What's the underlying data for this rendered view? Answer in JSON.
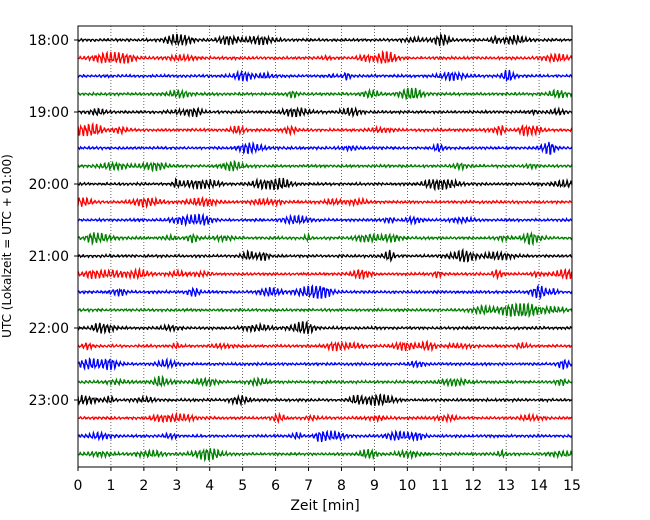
{
  "chart_data": {
    "type": "line",
    "title": "",
    "xlabel": "Zeit  [min]",
    "ylabel": "UTC (Lokalzeit = UTC + 01:00)",
    "xlim": [
      0,
      15
    ],
    "x_ticks": [
      "0",
      "1",
      "2",
      "3",
      "4",
      "5",
      "6",
      "7",
      "8",
      "9",
      "10",
      "11",
      "12",
      "13",
      "14",
      "15"
    ],
    "y_ticks": [
      "18:00",
      "19:00",
      "20:00",
      "21:00",
      "22:00",
      "23:00"
    ],
    "grid": "vertical dotted lines at each minute",
    "trace_minutes": 15,
    "traces_per_hour": 4,
    "color_cycle": [
      "#000000",
      "#ff0000",
      "#0000ff",
      "#007f00"
    ],
    "series": [
      {
        "start": "18:00"
      },
      {
        "start": "18:15"
      },
      {
        "start": "18:30"
      },
      {
        "start": "18:45"
      },
      {
        "start": "19:00"
      },
      {
        "start": "19:15"
      },
      {
        "start": "19:30"
      },
      {
        "start": "19:45"
      },
      {
        "start": "20:00"
      },
      {
        "start": "20:15"
      },
      {
        "start": "20:30"
      },
      {
        "start": "20:45"
      },
      {
        "start": "21:00"
      },
      {
        "start": "21:15"
      },
      {
        "start": "21:30"
      },
      {
        "start": "21:45"
      },
      {
        "start": "22:00"
      },
      {
        "start": "22:15"
      },
      {
        "start": "22:30"
      },
      {
        "start": "22:45"
      },
      {
        "start": "23:00"
      },
      {
        "start": "23:15"
      },
      {
        "start": "23:30"
      },
      {
        "start": "23:45"
      }
    ],
    "note_amplitude": "small seismic noise oscillations around each trace baseline"
  }
}
